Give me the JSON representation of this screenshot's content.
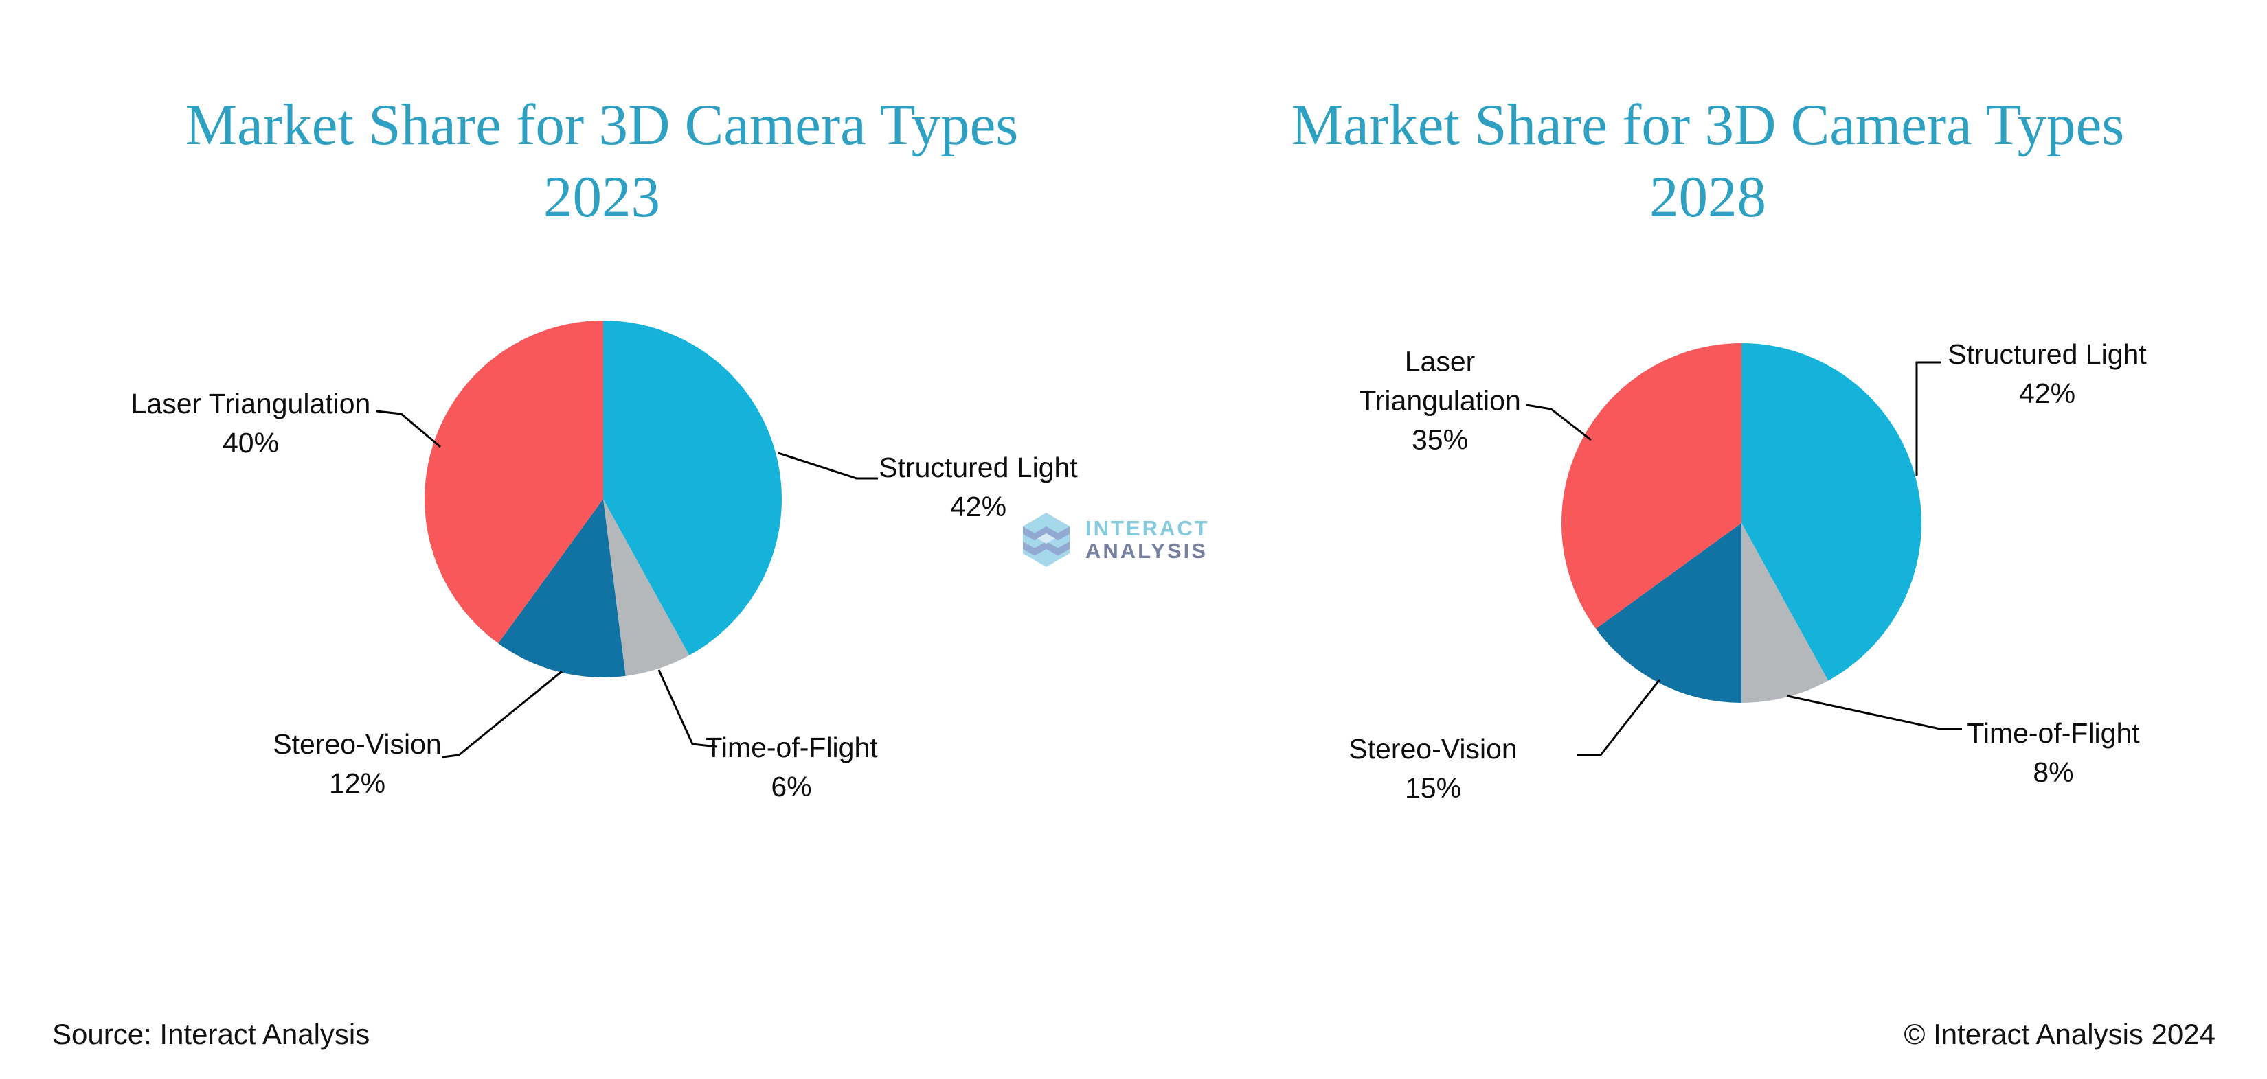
{
  "chart_data": [
    {
      "type": "pie",
      "title": "Market Share for 3D Camera Types",
      "subtitle": "2023",
      "start_angle_deg": 0,
      "direction": "clockwise",
      "labels_show_percent": true,
      "legend": "none",
      "slices": [
        {
          "label": "Structured Light",
          "value": 42,
          "color": "#15B2D9"
        },
        {
          "label": "Time-of-Flight",
          "value": 6,
          "color": "#B5B8BB"
        },
        {
          "label": "Stereo-Vision",
          "value": 12,
          "color": "#1173A3"
        },
        {
          "label": "Laser Triangulation",
          "value": 40,
          "color": "#F9585A"
        }
      ]
    },
    {
      "type": "pie",
      "title": "Market Share for 3D Camera Types",
      "subtitle": "2028",
      "start_angle_deg": 0,
      "direction": "clockwise",
      "labels_show_percent": true,
      "legend": "none",
      "slices": [
        {
          "label": "Structured Light",
          "value": 42,
          "color": "#15B2D9"
        },
        {
          "label": "Time-of-Flight",
          "value": 8,
          "color": "#B5B8BB"
        },
        {
          "label": "Stereo-Vision",
          "value": 15,
          "color": "#1173A3"
        },
        {
          "label": "Laser Triangulation",
          "value": 35,
          "color": "#F9585A"
        }
      ]
    }
  ],
  "logo": {
    "line1": "INTERACT",
    "line2": "ANALYSIS"
  },
  "footer": {
    "source": "Source: Interact Analysis",
    "copyright": "© Interact Analysis 2024"
  },
  "colors": {
    "title": "#2EA0C2",
    "label_text": "#0D0D0D",
    "leader_line": "#000000",
    "logo_interact": "#85CBE0",
    "logo_analysis": "#76819F",
    "logo_hex_light": "#A6D8EC",
    "logo_hex_dark": "#92AAD2",
    "logo_hex_pale": "#D8EAF4"
  }
}
